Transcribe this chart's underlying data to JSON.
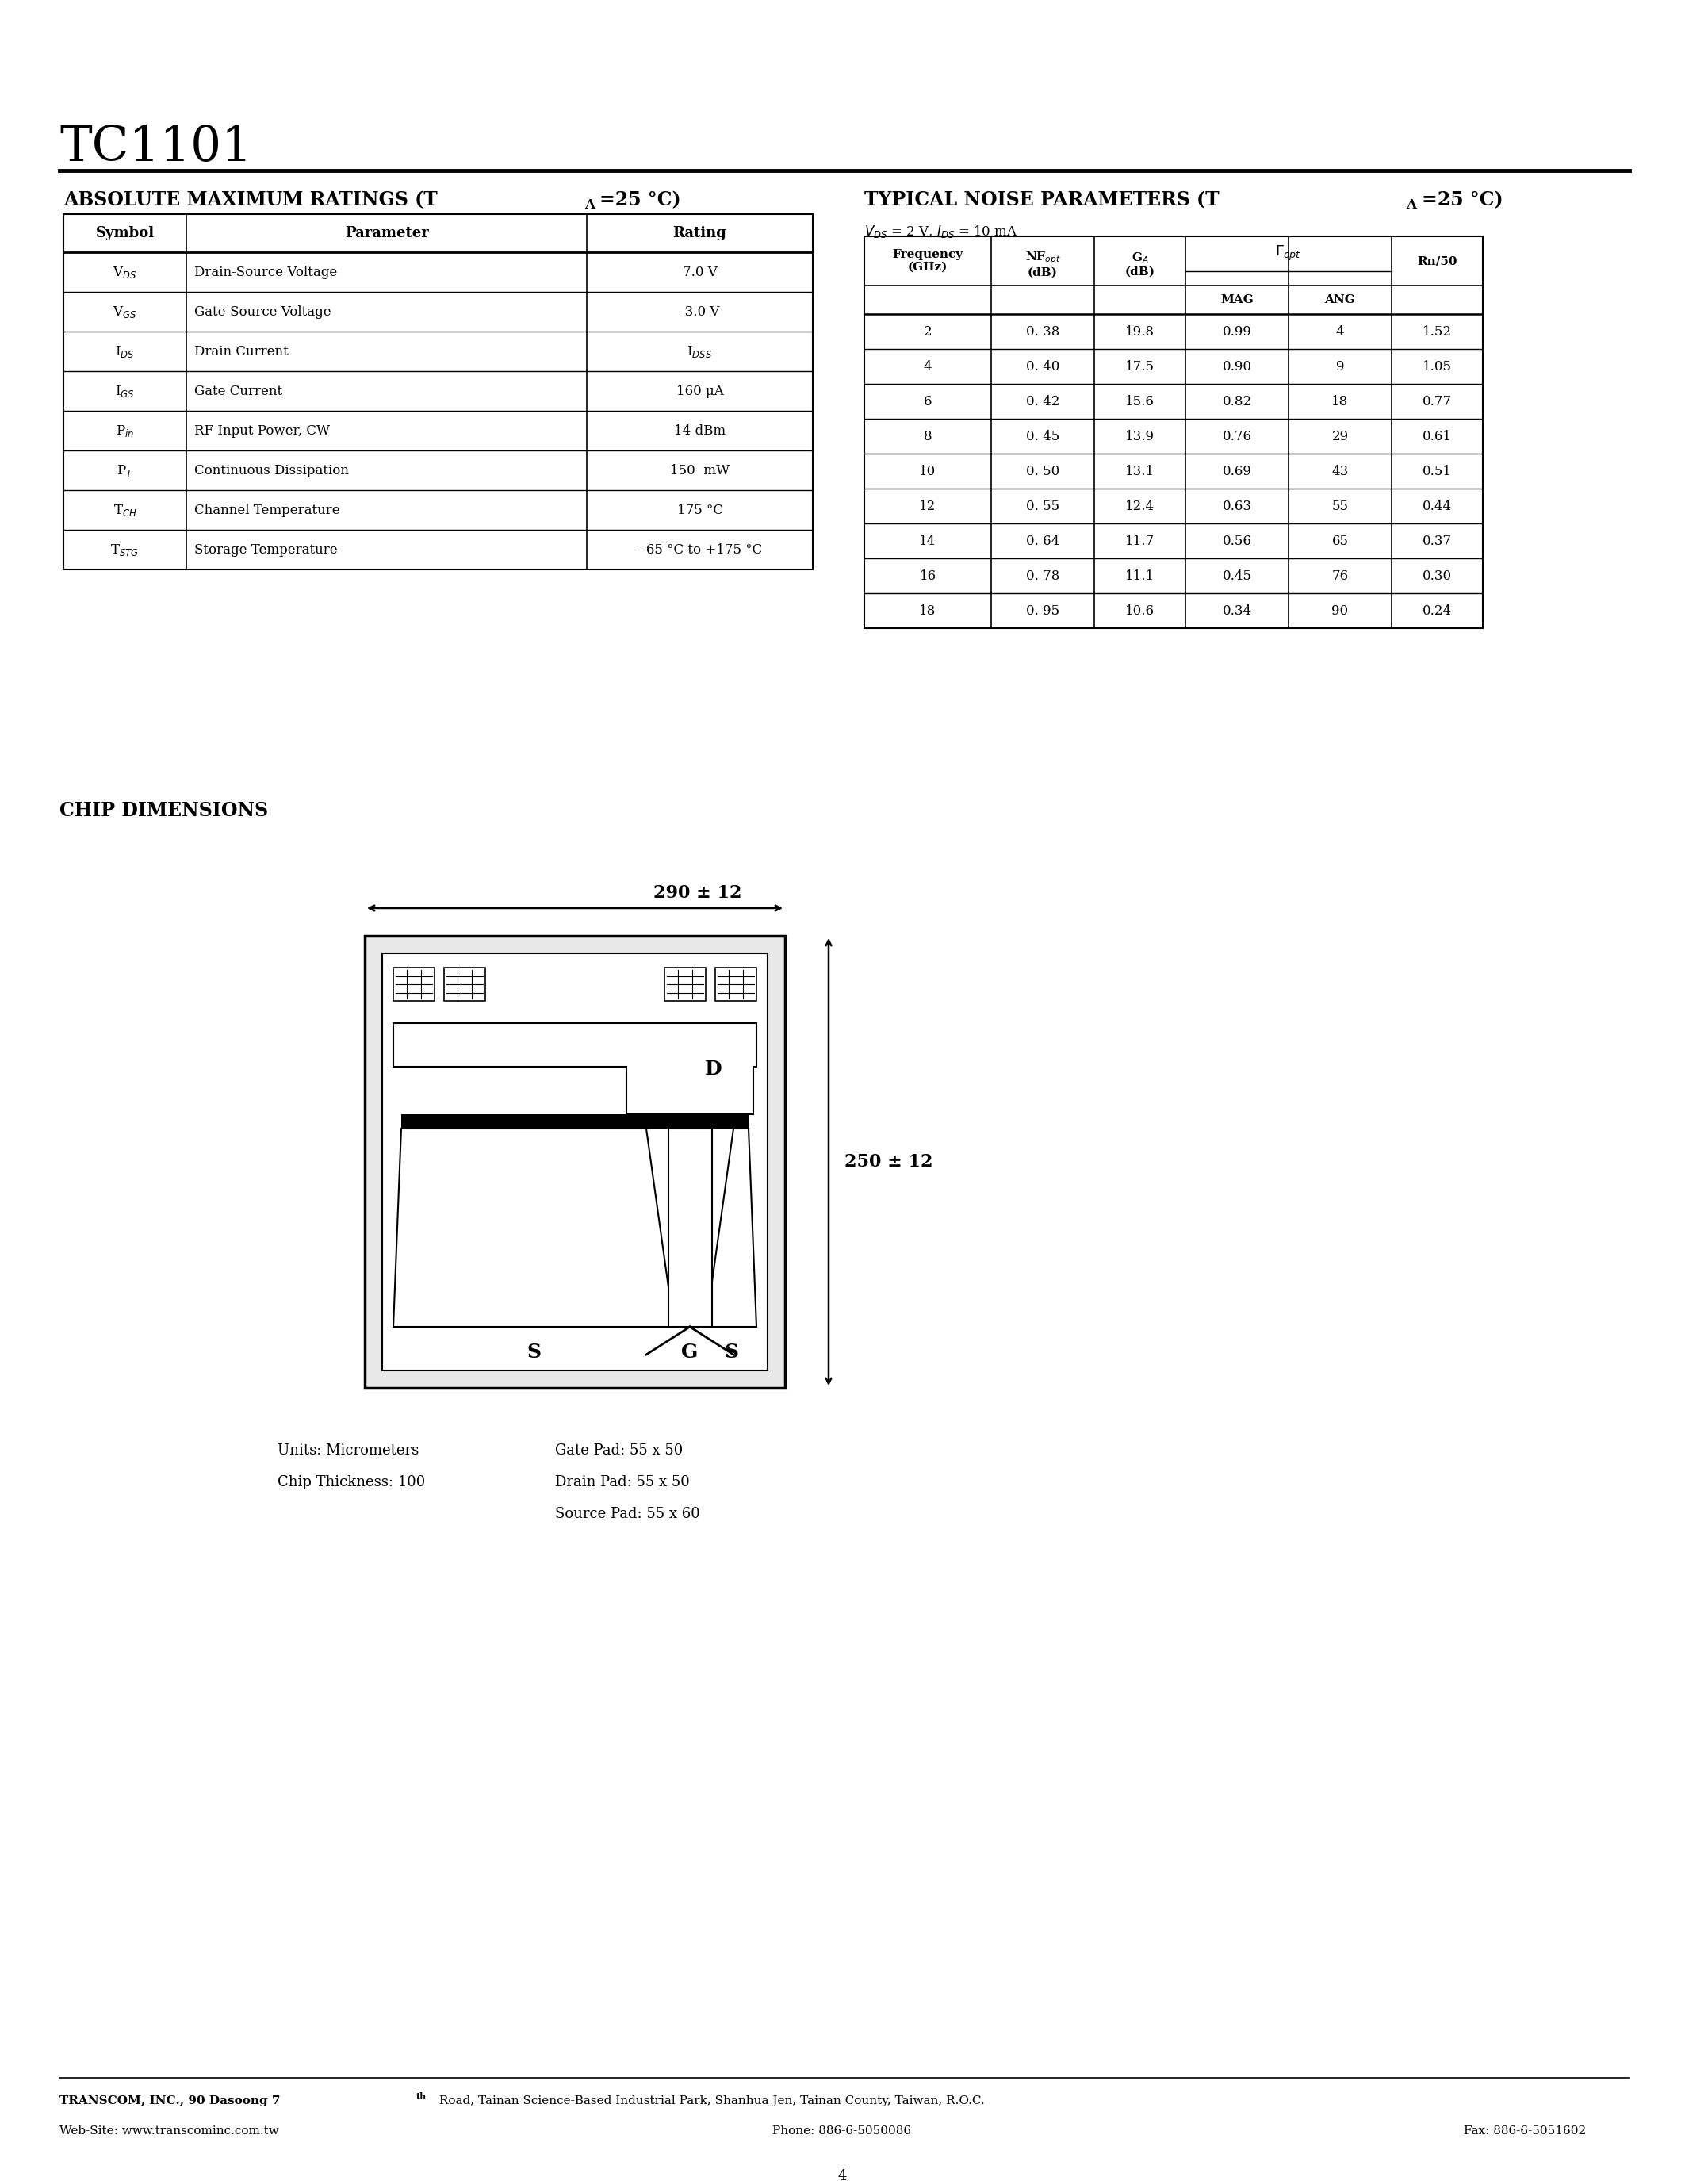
{
  "title": "TC1101",
  "bg_color": "#ffffff",
  "page_number": "4",
  "abs_max_rows": [
    [
      "V$_{DS}$",
      "Drain-Source Voltage",
      "7.0 V"
    ],
    [
      "V$_{GS}$",
      "Gate-Source Voltage",
      "-3.0 V"
    ],
    [
      "I$_{DS}$",
      "Drain Current",
      "I$_{DSS}$"
    ],
    [
      "I$_{GS}$",
      "Gate Current",
      "160 μA"
    ],
    [
      "P$_{in}$",
      "RF Input Power, CW",
      "14 dBm"
    ],
    [
      "P$_{T}$",
      "Continuous Dissipation",
      "150  mW"
    ],
    [
      "T$_{CH}$",
      "Channel Temperature",
      "175 °C"
    ],
    [
      "T$_{STG}$",
      "Storage Temperature",
      "- 65 °C to +175 °C"
    ]
  ],
  "noise_rows": [
    [
      "2",
      "0. 38",
      "19.8",
      "0.99",
      "4",
      "1.52"
    ],
    [
      "4",
      "0. 40",
      "17.5",
      "0.90",
      "9",
      "1.05"
    ],
    [
      "6",
      "0. 42",
      "15.6",
      "0.82",
      "18",
      "0.77"
    ],
    [
      "8",
      "0. 45",
      "13.9",
      "0.76",
      "29",
      "0.61"
    ],
    [
      "10",
      "0. 50",
      "13.1",
      "0.69",
      "43",
      "0.51"
    ],
    [
      "12",
      "0. 55",
      "12.4",
      "0.63",
      "55",
      "0.44"
    ],
    [
      "14",
      "0. 64",
      "11.7",
      "0.56",
      "65",
      "0.37"
    ],
    [
      "16",
      "0. 78",
      "11.1",
      "0.45",
      "76",
      "0.30"
    ],
    [
      "18",
      "0. 95",
      "10.6",
      "0.34",
      "90",
      "0.24"
    ]
  ],
  "chip_width_label": "290 ± 12",
  "chip_height_label": "250 ± 12",
  "units_text": "Units: Micrometers",
  "thickness_text": "Chip Thickness: 100",
  "gate_pad_text": "Gate Pad: 55 x 50",
  "drain_pad_text": "Drain Pad: 55 x 50",
  "source_pad_text": "Source Pad: 55 x 60",
  "footer_7th": "th",
  "footer_line1a": "TRANSCOM, INC., 90 Dasoong 7",
  "footer_line1b": " Road, Tainan Science-Based Industrial Park, Shanhua Jen, Tainan County, Taiwan, R.O.C.",
  "footer_line2_left": "Web-Site: www.transcominc.com.tw",
  "footer_line2_mid": "Phone: 886-6-5050086",
  "footer_line2_right": "Fax: 886-6-5051602"
}
